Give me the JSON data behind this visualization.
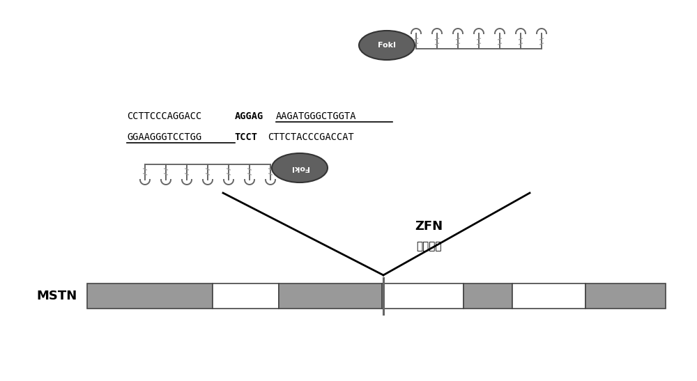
{
  "background_color": "#ffffff",
  "seq_line1_normal": "CCTTCCCAGGACC",
  "seq_line1_bold": "AGGAG",
  "seq_line1_underline": "AAGATGGGCTGGTA",
  "seq_line2_underline": "GGAAGGGTCCTGG",
  "seq_line2_bold": "TCCT",
  "seq_line2_rest": "CTTCTACCCGACCAT",
  "label_ZFN": "ZFN",
  "label_cleavage": "敞除位点",
  "label_MSTN": "MSTN",
  "fokI_text": "FokI",
  "exon_color": "#999999",
  "exon_border": "#444444",
  "cut_line_color": "#666666",
  "finger_color": "#666666",
  "fokI_color": "#606060",
  "black": "#000000"
}
